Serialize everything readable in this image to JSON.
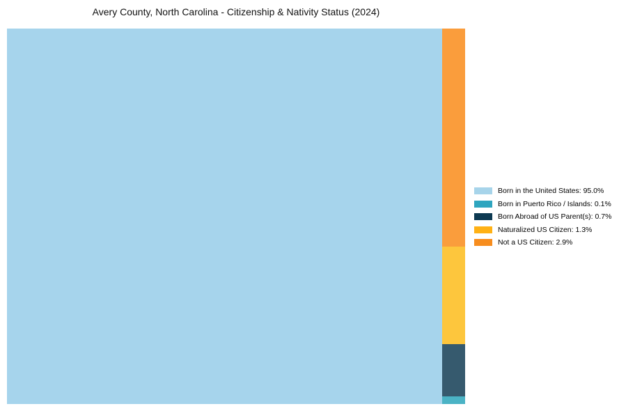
{
  "title": "Avery County, North Carolina - Citizenship & Nativity Status (2024)",
  "chart_data": {
    "type": "treemap",
    "title": "Avery County, North Carolina - Citizenship & Nativity Status (2024)",
    "categories": [
      "Born in the United States",
      "Born in Puerto Rico / Islands",
      "Born Abroad of US Parent(s)",
      "Naturalized US Citizen",
      "Not a US Citizen"
    ],
    "values": [
      95.0,
      0.1,
      0.7,
      1.3,
      2.9
    ],
    "unit": "%",
    "tile_colors": [
      "#A6D4EC",
      "#4BB3C5",
      "#365A6E",
      "#FDC63D",
      "#FA9D3C"
    ],
    "legend_colors": [
      "#A7D4EA",
      "#2EA5BF",
      "#0D3A52",
      "#FFB115",
      "#F78D1E"
    ],
    "legend_position": "right",
    "layout_hint": "largest tile fills left side; remaining tiles stacked in a narrow right column, largest at top, smallest at bottom"
  },
  "legend": {
    "items": [
      {
        "label": "Born in the United States: 95.0%",
        "color": "#A7D4EA"
      },
      {
        "label": "Born in Puerto Rico / Islands: 0.1%",
        "color": "#2EA5BF"
      },
      {
        "label": "Born Abroad of US Parent(s): 0.7%",
        "color": "#0D3A52"
      },
      {
        "label": "Naturalized US Citizen: 1.3%",
        "color": "#FFB115"
      },
      {
        "label": "Not a US Citizen: 2.9%",
        "color": "#F78D1E"
      }
    ]
  }
}
